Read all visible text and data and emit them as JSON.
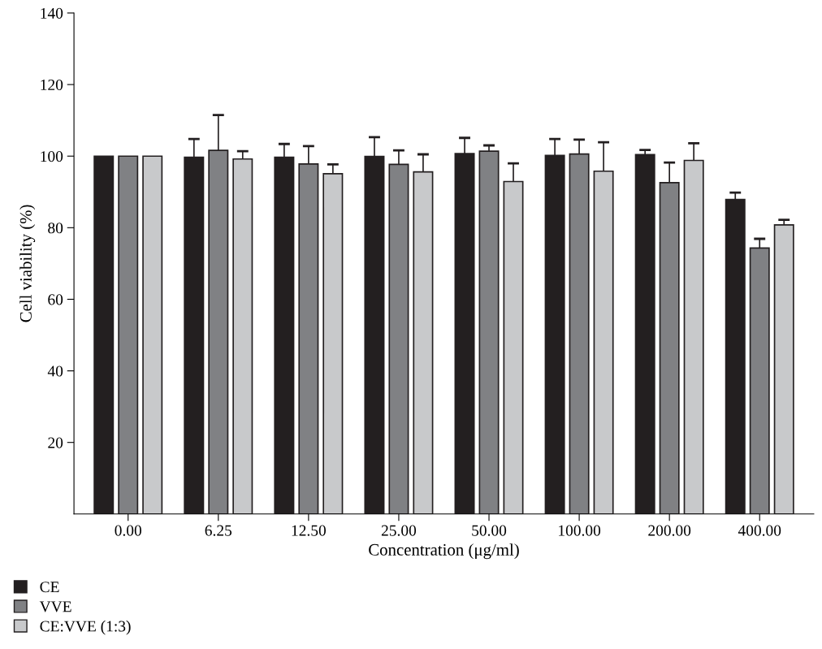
{
  "chart_data": {
    "type": "bar",
    "xlabel": "Concentration (μg/ml)",
    "ylabel": "Cell viability (%)",
    "categories": [
      "0.00",
      "6.25",
      "12.50",
      "25.00",
      "50.00",
      "100.00",
      "200.00",
      "400.00"
    ],
    "series": [
      {
        "name": "CE",
        "color": "#231f20",
        "values": [
          100,
          99.7,
          99.7,
          99.9,
          100.7,
          100.2,
          100.4,
          87.9
        ],
        "errors": [
          null,
          5.1,
          3.7,
          5.4,
          4.4,
          4.6,
          1.3,
          1.9
        ]
      },
      {
        "name": "VVE",
        "color": "#808184",
        "values": [
          100,
          101.6,
          97.8,
          97.7,
          101.4,
          100.6,
          92.6,
          74.3
        ],
        "errors": [
          null,
          9.9,
          5.0,
          3.9,
          1.6,
          4.0,
          5.6,
          2.6
        ]
      },
      {
        "name": "CE:VVE (1:3)",
        "color": "#c8c9cb",
        "values": [
          100,
          99.2,
          95.1,
          95.6,
          92.9,
          95.8,
          98.8,
          80.8
        ],
        "errors": [
          null,
          2.2,
          2.6,
          4.9,
          5.1,
          8.1,
          4.8,
          1.4
        ]
      }
    ],
    "ylim": [
      0,
      140
    ],
    "yticks": [
      20,
      40,
      60,
      80,
      100,
      120,
      140
    ],
    "legend": "bottom left",
    "grid": false
  }
}
